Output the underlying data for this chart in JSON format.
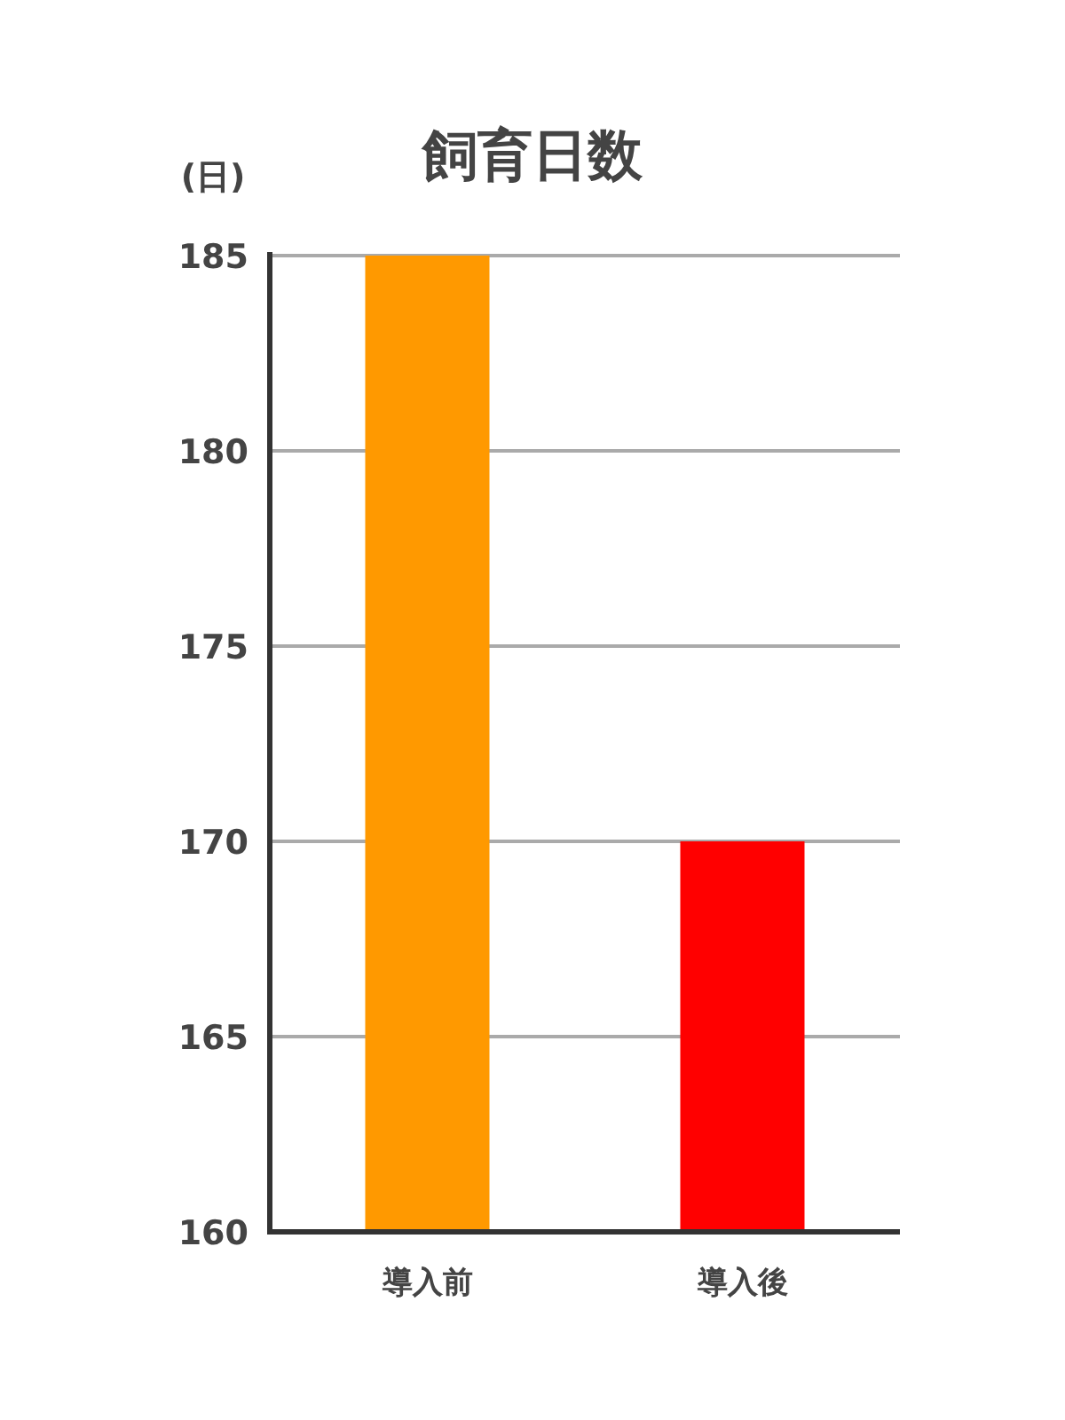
{
  "chart_data": {
    "type": "bar",
    "title": "飼育日数",
    "ylabel": "(日)",
    "categories": [
      "導入前",
      "導入後"
    ],
    "values": [
      185,
      170
    ],
    "colors": [
      "#ff9900",
      "#ff0000"
    ],
    "ylim": [
      160,
      185
    ],
    "yticks": [
      160,
      165,
      170,
      175,
      180,
      185
    ],
    "grid": "y"
  }
}
